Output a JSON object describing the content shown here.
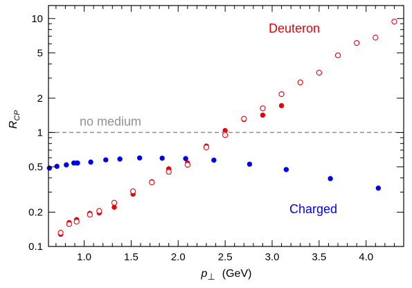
{
  "chart_data": {
    "type": "scatter",
    "xlabel": "p⊥ (GeV)",
    "xlabel_main": "p",
    "xlabel_sub": "⊥",
    "xlabel_unit": "(GeV)",
    "ylabel": "R_CP",
    "ylabel_main": "R",
    "ylabel_sub": "CP",
    "xlim": [
      0.62,
      4.4
    ],
    "ylim": [
      0.1,
      13
    ],
    "y_scale": "log",
    "x_ticks": [
      1.0,
      1.5,
      2.0,
      2.5,
      3.0,
      3.5,
      4.0
    ],
    "x_tick_labels": [
      "1.0",
      "1.5",
      "2.0",
      "2.5",
      "3.0",
      "3.5",
      "4.0"
    ],
    "y_ticks": [
      0.1,
      0.2,
      0.5,
      1,
      2,
      5,
      10
    ],
    "y_tick_labels": [
      "0.1",
      "0.2",
      "0.5",
      "1",
      "2",
      "5",
      "10"
    ],
    "grid": false,
    "reference_line": {
      "y": 1,
      "label": "no medium",
      "color": "#909090",
      "style": "dashed"
    },
    "annotations": [
      {
        "text": "Deuteron",
        "color": "#e8000b"
      },
      {
        "text": "Charged",
        "color": "#0000e8"
      }
    ],
    "series": [
      {
        "name": "Deuteron",
        "marker": "filled-circle",
        "color": "#e8000b",
        "x": [
          0.75,
          0.84,
          0.92,
          1.06,
          1.16,
          1.32,
          1.52,
          1.72,
          1.9,
          2.1,
          2.3,
          2.5,
          2.7,
          2.9,
          3.1
        ],
        "y": [
          0.128,
          0.162,
          0.172,
          0.195,
          0.197,
          0.221,
          0.288,
          0.37,
          0.48,
          0.54,
          0.76,
          1.04,
          1.3,
          1.42,
          1.72
        ]
      },
      {
        "name": "Deuteron",
        "marker": "open-circle",
        "color": "#e8000b",
        "x": [
          0.75,
          0.84,
          0.92,
          1.06,
          1.16,
          1.32,
          1.52,
          1.72,
          1.9,
          2.1,
          2.3,
          2.5,
          2.7,
          2.9,
          3.1,
          3.3,
          3.5,
          3.7,
          3.9,
          4.1,
          4.3
        ],
        "y": [
          0.132,
          0.157,
          0.165,
          0.19,
          0.205,
          0.242,
          0.305,
          0.365,
          0.452,
          0.52,
          0.74,
          0.95,
          1.32,
          1.63,
          2.17,
          2.75,
          3.35,
          4.75,
          6.1,
          6.8,
          9.4
        ]
      },
      {
        "name": "Charged",
        "marker": "filled-circle",
        "color": "#0000e8",
        "x": [
          0.63,
          0.71,
          0.81,
          0.89,
          0.92,
          0.93,
          1.07,
          1.23,
          1.38,
          1.59,
          1.83,
          2.08,
          2.38,
          2.76,
          3.15,
          3.62,
          4.13
        ],
        "y": [
          0.487,
          0.505,
          0.52,
          0.54,
          0.54,
          0.54,
          0.55,
          0.575,
          0.585,
          0.598,
          0.595,
          0.59,
          0.572,
          0.527,
          0.473,
          0.394,
          0.325
        ]
      }
    ]
  }
}
